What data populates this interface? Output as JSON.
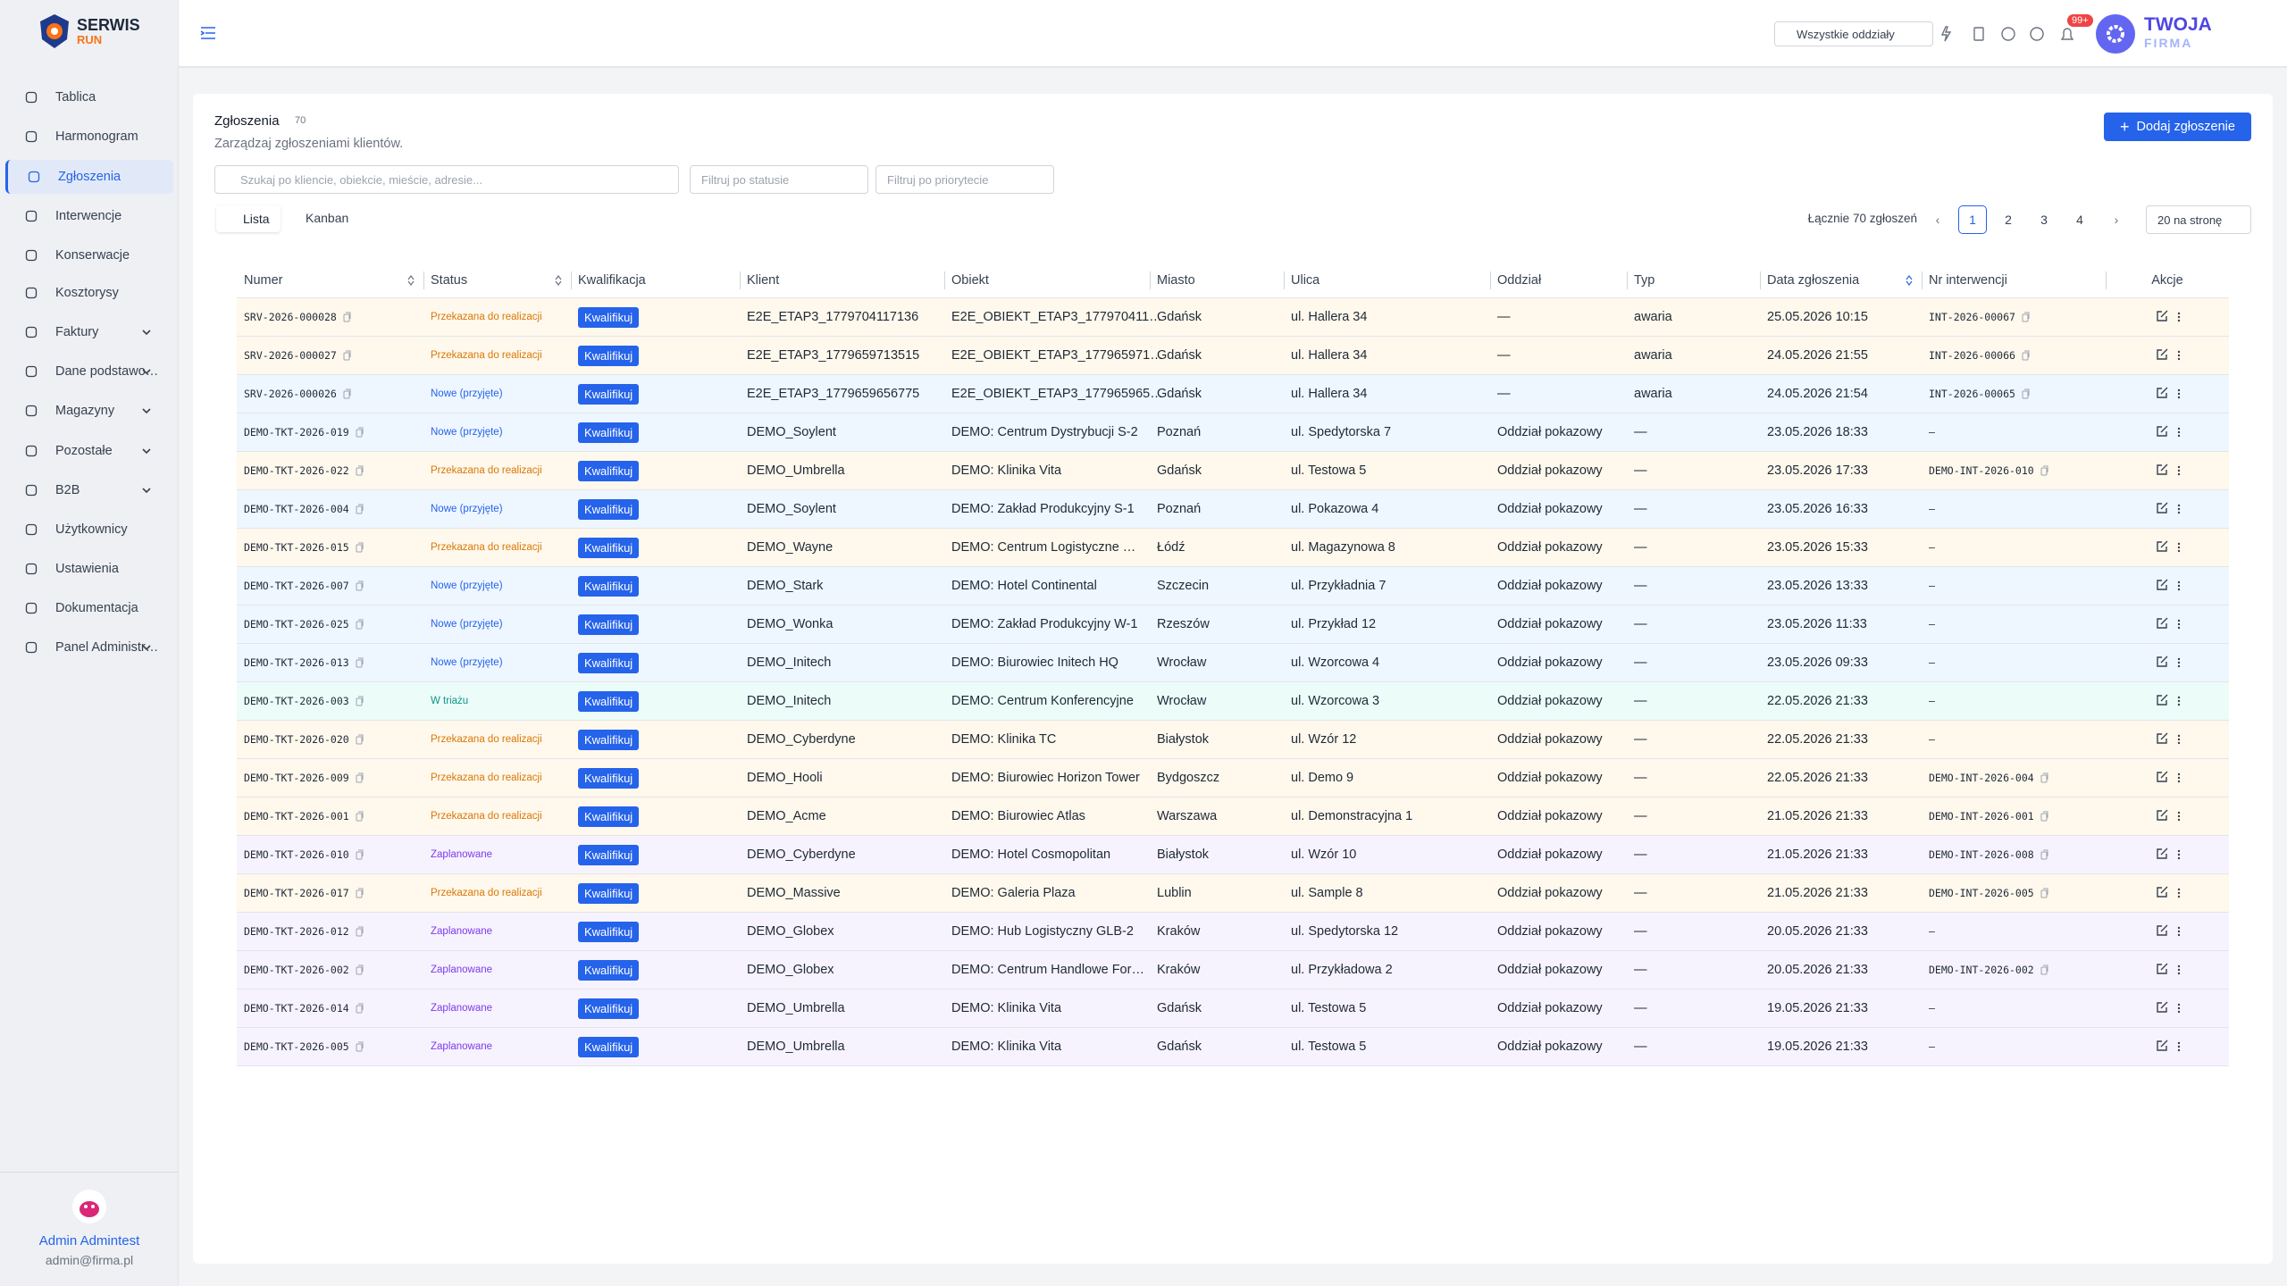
{
  "brand": {
    "name": "SERWIS",
    "sub": "RUN"
  },
  "header": {
    "branch_select": "Wszystkie oddziały",
    "notifications": "99+",
    "company": {
      "name": "TWOJA",
      "sub": "FIRMA"
    }
  },
  "sidebar": {
    "items": [
      "Tablica",
      "Harmonogram",
      "Zgłoszenia",
      "Interwencje",
      "Konserwacje",
      "Kosztorysy",
      "Faktury",
      "Dane podstawo…",
      "Magazyny",
      "Pozostałe",
      "B2B",
      "Użytkownicy",
      "Ustawienia",
      "Dokumentacja",
      "Panel Administr…"
    ],
    "user": {
      "name": "Admin Admintest",
      "email": "admin@firma.pl"
    }
  },
  "page": {
    "title": "Zgłoszenia",
    "count": "70",
    "subtitle": "Zarządzaj zgłoszeniami klientów.",
    "add_button": "Dodaj zgłoszenie",
    "search_placeholder": "Szukaj po kliencie, obiekcie, mieście, adresie...",
    "filter_status": "Filtruj po statusie",
    "filter_priority": "Filtruj po priorytecie",
    "view_list": "Lista",
    "view_kanban": "Kanban",
    "total": "Łącznie 70 zgłoszeń",
    "pages": [
      "1",
      "2",
      "3",
      "4"
    ],
    "per_page": "20 na stronę"
  },
  "table": {
    "columns": [
      "Numer",
      "Status",
      "Kwalifikacja",
      "Klient",
      "Obiekt",
      "Miasto",
      "Ulica",
      "Oddział",
      "Typ",
      "Data zgłoszenia",
      "Nr interwencji",
      "Akcje"
    ],
    "rows": [
      {
        "cells": [
          "SRV-2026-000028",
          "Przekazana do realizacji",
          "Kwalifikuj",
          "E2E_ETAP3_1779704117136",
          "E2E_OBIEKT_ETAP3_177970411…",
          "Gdańsk",
          "ul. Hallera 34",
          "—",
          "awaria",
          "25.05.2026 10:15",
          "INT-2026-00067"
        ],
        "color": "#d97706",
        "background": "#fff8ec"
      },
      {
        "cells": [
          "SRV-2026-000027",
          "Przekazana do realizacji",
          "Kwalifikuj",
          "E2E_ETAP3_1779659713515",
          "E2E_OBIEKT_ETAP3_177965971…",
          "Gdańsk",
          "ul. Hallera 34",
          "—",
          "awaria",
          "24.05.2026 21:55",
          "INT-2026-00066"
        ],
        "color": "#d97706",
        "background": "#fff8ec"
      },
      {
        "cells": [
          "SRV-2026-000026",
          "Nowe (przyjęte)",
          "Kwalifikuj",
          "E2E_ETAP3_1779659656775",
          "E2E_OBIEKT_ETAP3_177965965…",
          "Gdańsk",
          "ul. Hallera 34",
          "—",
          "awaria",
          "24.05.2026 21:54",
          "INT-2026-00065"
        ],
        "color": "#2563eb",
        "background": "#eef6ff"
      },
      {
        "cells": [
          "DEMO-TKT-2026-019",
          "Nowe (przyjęte)",
          "Kwalifikuj",
          "DEMO_Soylent",
          "DEMO: Centrum Dystrybucji S-2",
          "Poznań",
          "ul. Spedytorska 7",
          "Oddział pokazowy",
          "—",
          "23.05.2026 18:33",
          "—"
        ],
        "color": "#2563eb",
        "background": "#eef6ff"
      },
      {
        "cells": [
          "DEMO-TKT-2026-022",
          "Przekazana do realizacji",
          "Kwalifikuj",
          "DEMO_Umbrella",
          "DEMO: Klinika Vita",
          "Gdańsk",
          "ul. Testowa 5",
          "Oddział pokazowy",
          "—",
          "23.05.2026 17:33",
          "DEMO-INT-2026-010"
        ],
        "color": "#d97706",
        "background": "#fff8ec"
      },
      {
        "cells": [
          "DEMO-TKT-2026-004",
          "Nowe (przyjęte)",
          "Kwalifikuj",
          "DEMO_Soylent",
          "DEMO: Zakład Produkcyjny S-1",
          "Poznań",
          "ul. Pokazowa 4",
          "Oddział pokazowy",
          "—",
          "23.05.2026 16:33",
          "—"
        ],
        "color": "#2563eb",
        "background": "#eef6ff"
      },
      {
        "cells": [
          "DEMO-TKT-2026-015",
          "Przekazana do realizacji",
          "Kwalifikuj",
          "DEMO_Wayne",
          "DEMO: Centrum Logistyczne …",
          "Łódź",
          "ul. Magazynowa 8",
          "Oddział pokazowy",
          "—",
          "23.05.2026 15:33",
          "—"
        ],
        "color": "#d97706",
        "background": "#fff8ec"
      },
      {
        "cells": [
          "DEMO-TKT-2026-007",
          "Nowe (przyjęte)",
          "Kwalifikuj",
          "DEMO_Stark",
          "DEMO: Hotel Continental",
          "Szczecin",
          "ul. Przykładnia 7",
          "Oddział pokazowy",
          "—",
          "23.05.2026 13:33",
          "—"
        ],
        "color": "#2563eb",
        "background": "#eef6ff"
      },
      {
        "cells": [
          "DEMO-TKT-2026-025",
          "Nowe (przyjęte)",
          "Kwalifikuj",
          "DEMO_Wonka",
          "DEMO: Zakład Produkcyjny W-1",
          "Rzeszów",
          "ul. Przykład 12",
          "Oddział pokazowy",
          "—",
          "23.05.2026 11:33",
          "—"
        ],
        "color": "#2563eb",
        "background": "#eef6ff"
      },
      {
        "cells": [
          "DEMO-TKT-2026-013",
          "Nowe (przyjęte)",
          "Kwalifikuj",
          "DEMO_Initech",
          "DEMO: Biurowiec Initech HQ",
          "Wrocław",
          "ul. Wzorcowa 4",
          "Oddział pokazowy",
          "—",
          "23.05.2026 09:33",
          "—"
        ],
        "color": "#2563eb",
        "background": "#eef6ff"
      },
      {
        "cells": [
          "DEMO-TKT-2026-003",
          "W triażu",
          "Kwalifikuj",
          "DEMO_Initech",
          "DEMO: Centrum Konferencyjne",
          "Wrocław",
          "ul. Wzorcowa 3",
          "Oddział pokazowy",
          "—",
          "22.05.2026 21:33",
          "—"
        ],
        "color": "#0d9488",
        "background": "#ecfdf9"
      },
      {
        "cells": [
          "DEMO-TKT-2026-020",
          "Przekazana do realizacji",
          "Kwalifikuj",
          "DEMO_Cyberdyne",
          "DEMO: Klinika TC",
          "Białystok",
          "ul. Wzór 12",
          "Oddział pokazowy",
          "—",
          "22.05.2026 21:33",
          "—"
        ],
        "color": "#d97706",
        "background": "#fff8ec"
      },
      {
        "cells": [
          "DEMO-TKT-2026-009",
          "Przekazana do realizacji",
          "Kwalifikuj",
          "DEMO_Hooli",
          "DEMO: Biurowiec Horizon Tower",
          "Bydgoszcz",
          "ul. Demo 9",
          "Oddział pokazowy",
          "—",
          "22.05.2026 21:33",
          "DEMO-INT-2026-004"
        ],
        "color": "#d97706",
        "background": "#fff8ec"
      },
      {
        "cells": [
          "DEMO-TKT-2026-001",
          "Przekazana do realizacji",
          "Kwalifikuj",
          "DEMO_Acme",
          "DEMO: Biurowiec Atlas",
          "Warszawa",
          "ul. Demonstracyjna 1",
          "Oddział pokazowy",
          "—",
          "21.05.2026 21:33",
          "DEMO-INT-2026-001"
        ],
        "color": "#d97706",
        "background": "#fff8ec"
      },
      {
        "cells": [
          "DEMO-TKT-2026-010",
          "Zaplanowane",
          "Kwalifikuj",
          "DEMO_Cyberdyne",
          "DEMO: Hotel Cosmopolitan",
          "Białystok",
          "ul. Wzór 10",
          "Oddział pokazowy",
          "—",
          "21.05.2026 21:33",
          "DEMO-INT-2026-008"
        ],
        "color": "#7c3aed",
        "background": "#f7f3fe"
      },
      {
        "cells": [
          "DEMO-TKT-2026-017",
          "Przekazana do realizacji",
          "Kwalifikuj",
          "DEMO_Massive",
          "DEMO: Galeria Plaza",
          "Lublin",
          "ul. Sample 8",
          "Oddział pokazowy",
          "—",
          "21.05.2026 21:33",
          "DEMO-INT-2026-005"
        ],
        "color": "#d97706",
        "background": "#fff8ec"
      },
      {
        "cells": [
          "DEMO-TKT-2026-012",
          "Zaplanowane",
          "Kwalifikuj",
          "DEMO_Globex",
          "DEMO: Hub Logistyczny GLB-2",
          "Kraków",
          "ul. Spedytorska 12",
          "Oddział pokazowy",
          "—",
          "20.05.2026 21:33",
          "—"
        ],
        "color": "#7c3aed",
        "background": "#f7f3fe"
      },
      {
        "cells": [
          "DEMO-TKT-2026-002",
          "Zaplanowane",
          "Kwalifikuj",
          "DEMO_Globex",
          "DEMO: Centrum Handlowe For…",
          "Kraków",
          "ul. Przykładowa 2",
          "Oddział pokazowy",
          "—",
          "20.05.2026 21:33",
          "DEMO-INT-2026-002"
        ],
        "color": "#7c3aed",
        "background": "#f7f3fe"
      },
      {
        "cells": [
          "DEMO-TKT-2026-014",
          "Zaplanowane",
          "Kwalifikuj",
          "DEMO_Umbrella",
          "DEMO: Klinika Vita",
          "Gdańsk",
          "ul. Testowa 5",
          "Oddział pokazowy",
          "—",
          "19.05.2026 21:33",
          "—"
        ],
        "color": "#7c3aed",
        "background": "#f7f3fe"
      },
      {
        "cells": [
          "DEMO-TKT-2026-005",
          "Zaplanowane",
          "Kwalifikuj",
          "DEMO_Umbrella",
          "DEMO: Klinika Vita",
          "Gdańsk",
          "ul. Testowa 5",
          "Oddział pokazowy",
          "—",
          "19.05.2026 21:33",
          "—"
        ],
        "color": "#7c3aed",
        "background": "#f7f3fe"
      }
    ]
  }
}
